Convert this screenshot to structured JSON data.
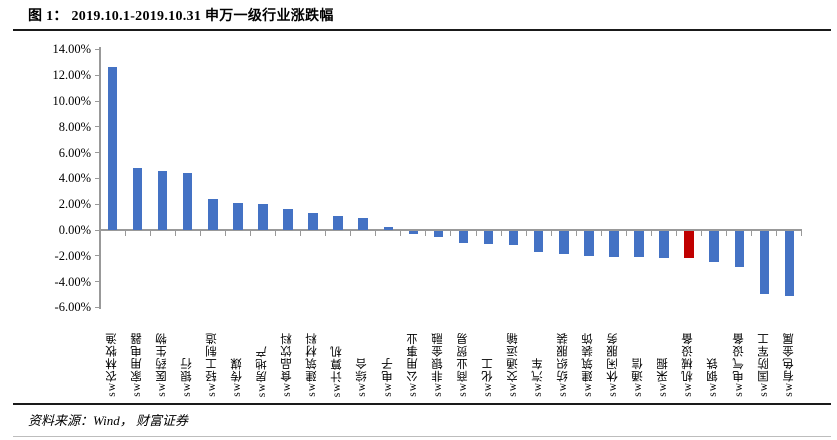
{
  "page": {
    "figure_title": "图 1： 2019.10.1-2019.10.31 申万一级行业涨跌幅",
    "source_note": "资料来源：Wind， 财富证券"
  },
  "chart_data": {
    "type": "bar",
    "title": "2019.10.1-2019.10.31 申万一级行业涨跌幅",
    "xlabel": "",
    "ylabel": "",
    "ylim": [
      -6,
      14
    ],
    "ytick_step": 2,
    "grid": false,
    "legend_position": "none",
    "bar_color": "#4472C4",
    "highlight_color": "#C00000",
    "highlight_index": 23,
    "axis_color": "#999999",
    "y_ticks": [
      {
        "label": "14.00%",
        "value": 14
      },
      {
        "label": "12.00%",
        "value": 12
      },
      {
        "label": "10.00%",
        "value": 10
      },
      {
        "label": "8.00%",
        "value": 8
      },
      {
        "label": "6.00%",
        "value": 6
      },
      {
        "label": "4.00%",
        "value": 4
      },
      {
        "label": "2.00%",
        "value": 2
      },
      {
        "label": "0.00%",
        "value": 0
      },
      {
        "label": "-2.00%",
        "value": -2
      },
      {
        "label": "-4.00%",
        "value": -4
      },
      {
        "label": "-6.00%",
        "value": -6
      }
    ],
    "categories": [
      "sw农林牧渔",
      "sw家用电器",
      "sw医药生物",
      "sw银行",
      "sw轻工制造",
      "sw传媒",
      "sw房地产",
      "sw食品饮料",
      "sw建筑材料",
      "sw计算机",
      "sw综合",
      "sw电子",
      "sw公用事业",
      "sw非银金融",
      "sw商业贸易",
      "sw化工",
      "sw交通运输",
      "sw汽车",
      "sw纺织服装",
      "sw建筑装饰",
      "sw休闲服务",
      "sw通信",
      "sw采掘",
      "sw机械设备",
      "sw钢铁",
      "sw电气设备",
      "sw国防军工",
      "sw有色金属"
    ],
    "values": [
      12.6,
      4.8,
      4.6,
      4.4,
      2.4,
      2.1,
      2.0,
      1.6,
      1.3,
      1.1,
      0.9,
      0.2,
      -0.2,
      -0.5,
      -0.9,
      -1.0,
      -1.1,
      -1.6,
      -1.8,
      -1.9,
      -2.0,
      -2.0,
      -2.1,
      -2.1,
      -2.4,
      -2.8,
      -4.9,
      -5.0
    ]
  }
}
